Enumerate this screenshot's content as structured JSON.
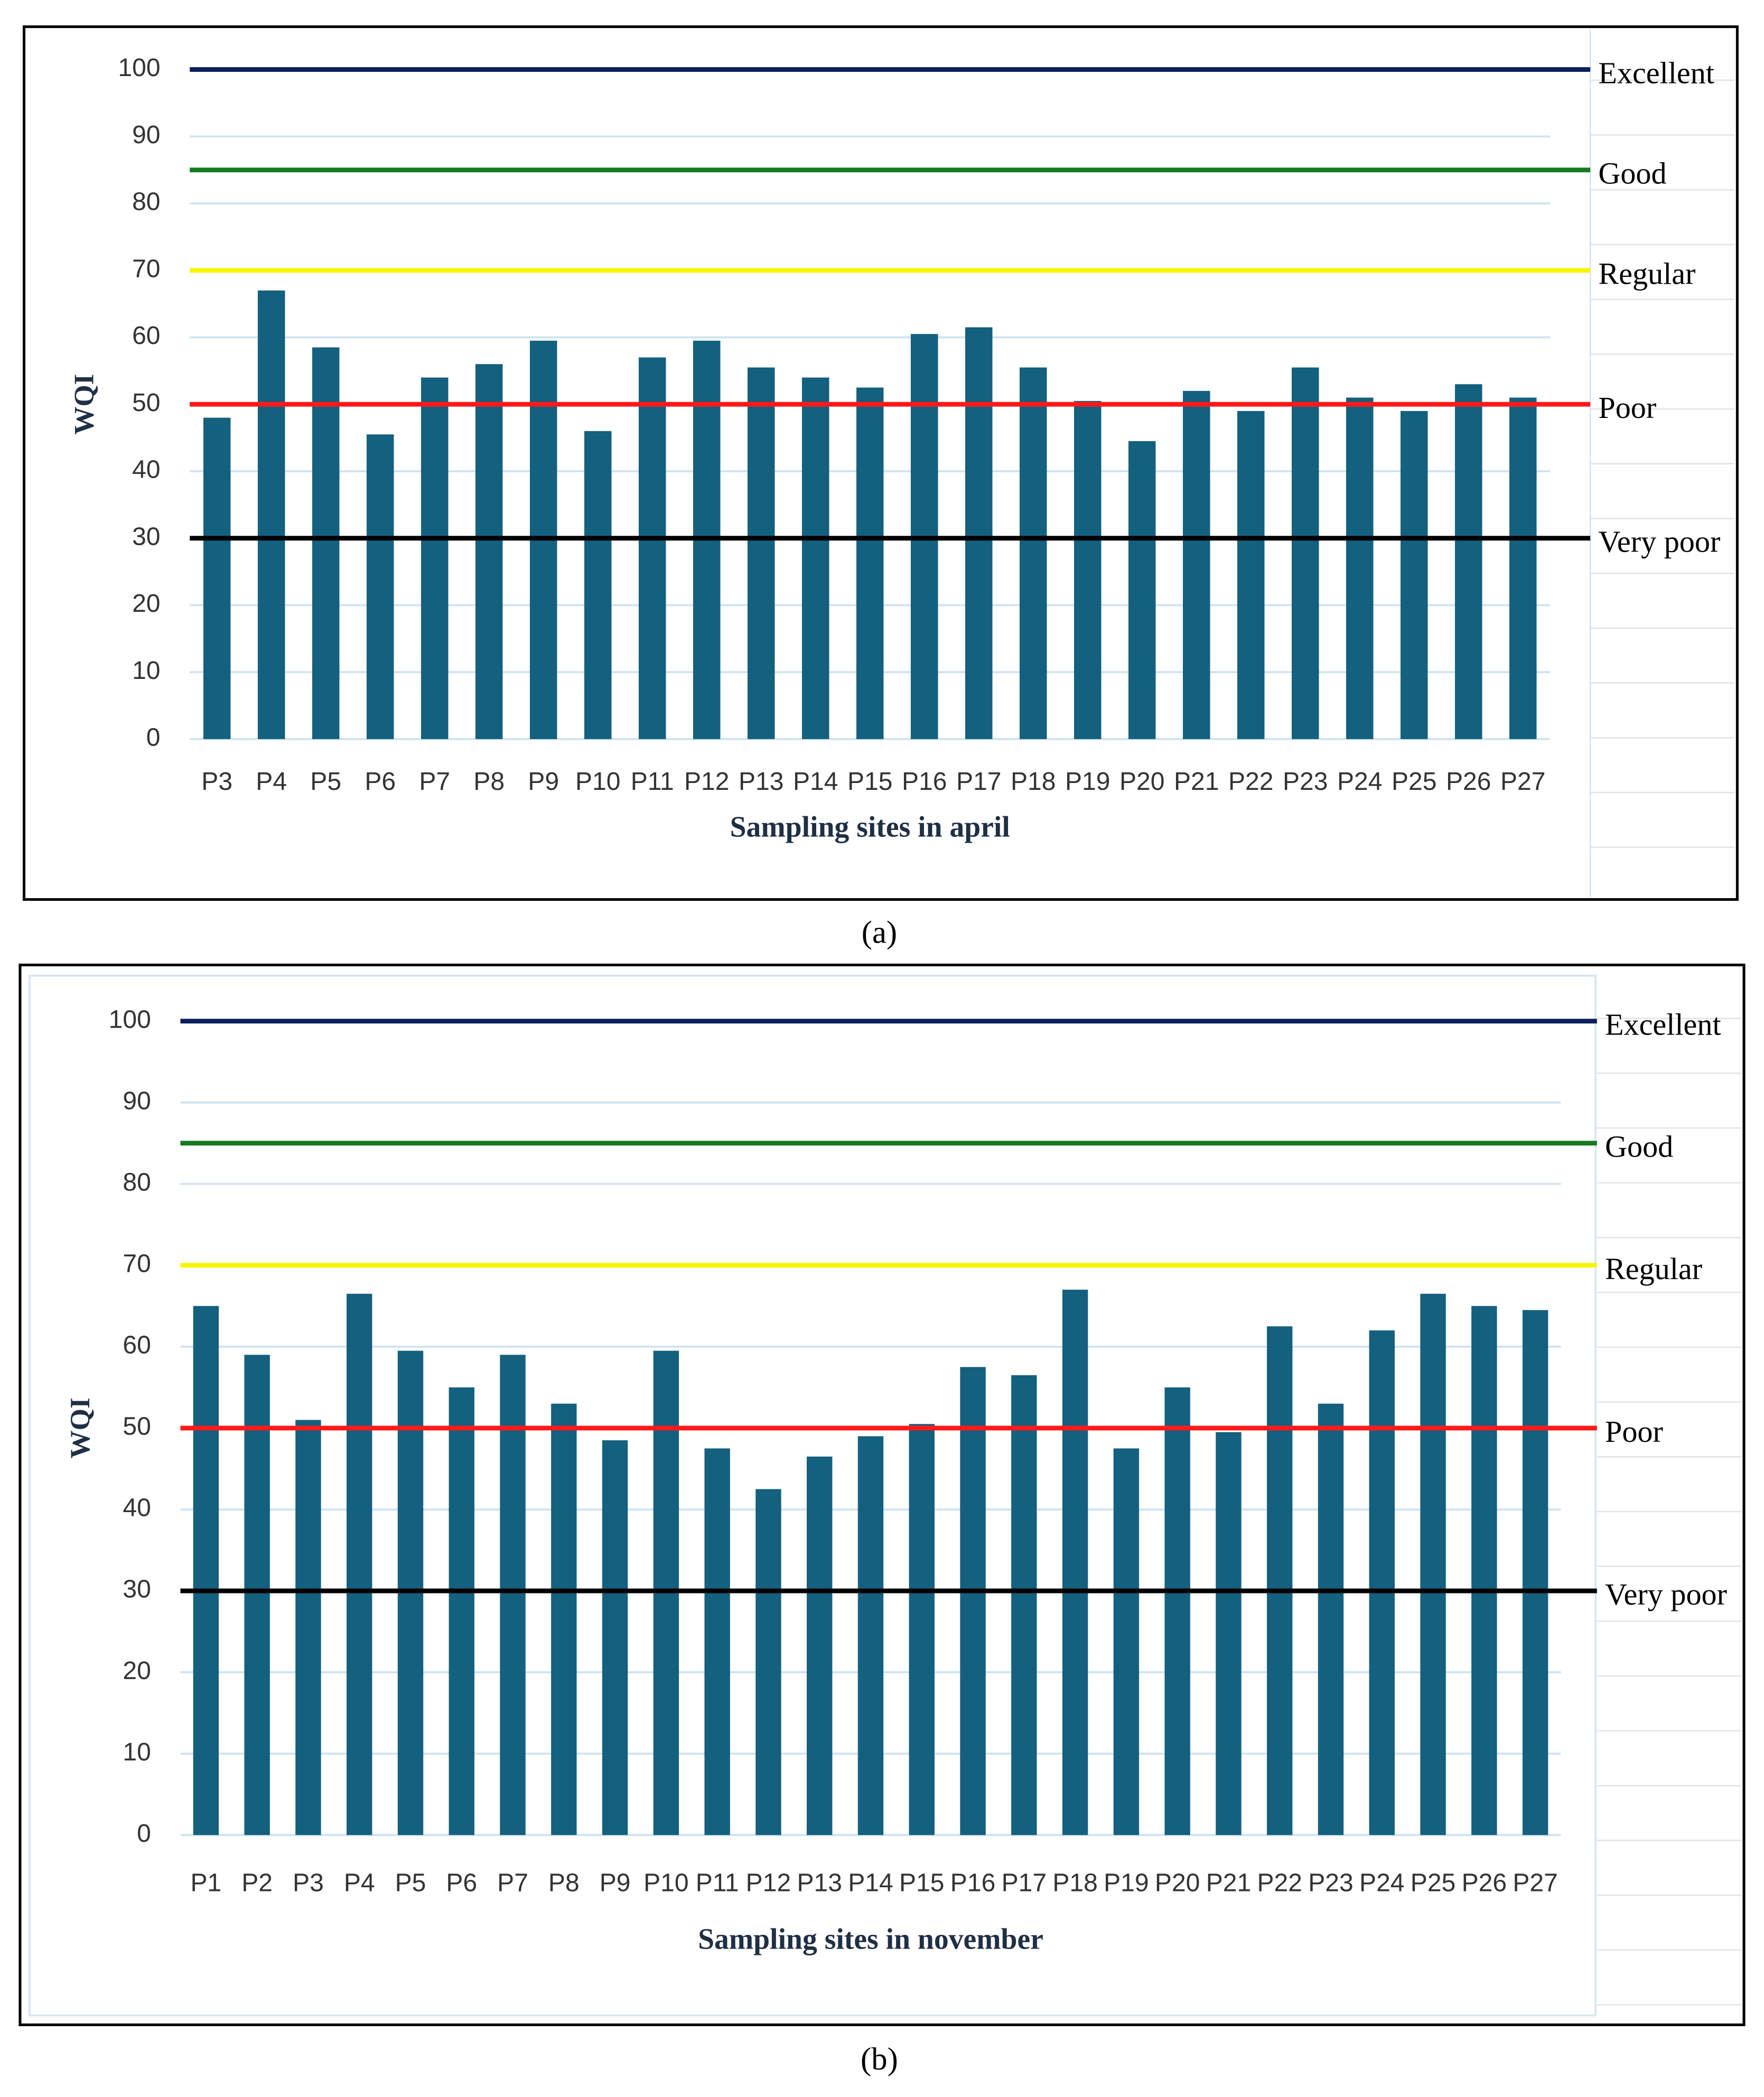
{
  "chart_data": [
    {
      "type": "bar",
      "x_label": "Sampling sites in april",
      "y_label": "WQI",
      "caption": "(a)",
      "categories": [
        "P3",
        "P4",
        "P5",
        "P6",
        "P7",
        "P8",
        "P9",
        "P10",
        "P11",
        "P12",
        "P13",
        "P14",
        "P15",
        "P16",
        "P17",
        "P18",
        "P19",
        "P20",
        "P21",
        "P22",
        "P23",
        "P24",
        "P25",
        "P26",
        "P27"
      ],
      "values": [
        48,
        67,
        58.5,
        45.5,
        54,
        56,
        59.5,
        46,
        57,
        59.5,
        55.5,
        54,
        52.5,
        60.5,
        61.5,
        55.5,
        50.5,
        44.5,
        52,
        49,
        55.5,
        51,
        49,
        53,
        51
      ],
      "color": "#14607f",
      "ylim": [
        0,
        100
      ],
      "yticks": [
        0,
        10,
        20,
        30,
        40,
        50,
        60,
        70,
        80,
        90,
        100
      ],
      "grid": true,
      "reference_lines": [
        {
          "label": "Excellent",
          "value": 100,
          "color": "#0b1f5c"
        },
        {
          "label": "Good",
          "value": 85,
          "color": "#167a1e"
        },
        {
          "label": "Regular",
          "value": 70,
          "color": "#f5f500"
        },
        {
          "label": "Poor",
          "value": 50,
          "color": "#ff1a1a"
        },
        {
          "label": "Very poor",
          "value": 30,
          "color": "#000000"
        }
      ]
    },
    {
      "type": "bar",
      "x_label": "Sampling sites in november",
      "y_label": "WQI",
      "caption": "(b)",
      "categories": [
        "P1",
        "P2",
        "P3",
        "P4",
        "P5",
        "P6",
        "P7",
        "P8",
        "P9",
        "P10",
        "P11",
        "P12",
        "P13",
        "P14",
        "P15",
        "P16",
        "P17",
        "P18",
        "P19",
        "P20",
        "P21",
        "P22",
        "P23",
        "P24",
        "P25",
        "P26",
        "P27"
      ],
      "values": [
        65,
        59,
        51,
        66.5,
        59.5,
        55,
        59,
        53,
        48.5,
        59.5,
        47.5,
        42.5,
        46.5,
        49,
        50.5,
        57.5,
        56.5,
        67,
        47.5,
        55,
        49.5,
        62.5,
        53,
        62,
        66.5,
        65,
        64.5
      ],
      "color": "#14607f",
      "ylim": [
        0,
        100
      ],
      "yticks": [
        0,
        10,
        20,
        30,
        40,
        50,
        60,
        70,
        80,
        90,
        100
      ],
      "grid": true,
      "reference_lines": [
        {
          "label": "Excellent",
          "value": 100,
          "color": "#0b1f5c"
        },
        {
          "label": "Good",
          "value": 85,
          "color": "#167a1e"
        },
        {
          "label": "Regular",
          "value": 70,
          "color": "#f5f500"
        },
        {
          "label": "Poor",
          "value": 50,
          "color": "#ff1a1a"
        },
        {
          "label": "Very poor",
          "value": 30,
          "color": "#000000"
        }
      ]
    }
  ]
}
